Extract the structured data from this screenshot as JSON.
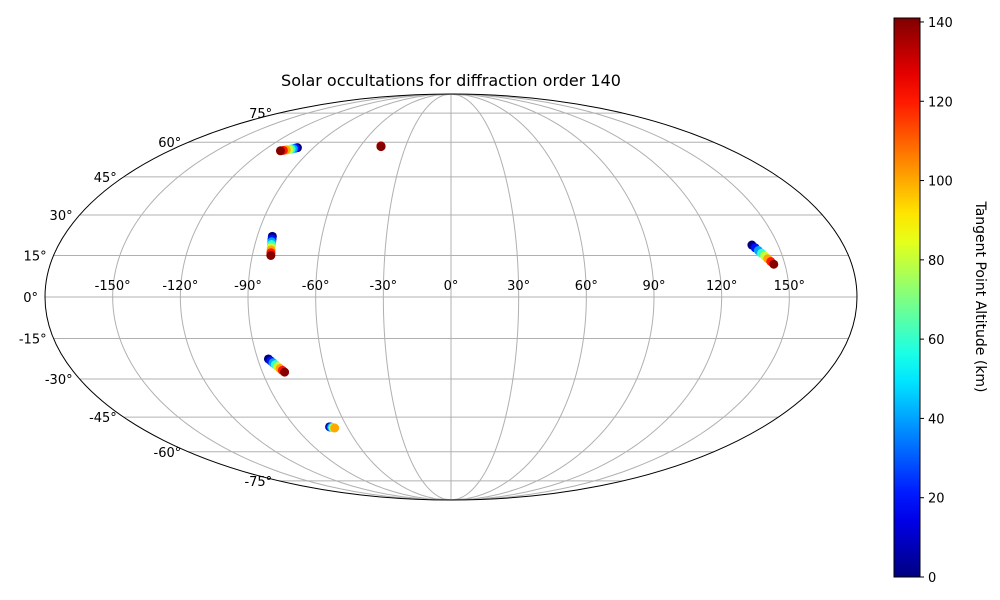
{
  "chart_data": {
    "type": "scatter",
    "projection": "mollweide",
    "title": "Solar occultations for diffraction order 140",
    "xlabel": "",
    "ylabel": "",
    "grid": true,
    "lon_ticks": [
      -150,
      -120,
      -90,
      -60,
      -30,
      0,
      30,
      60,
      90,
      120,
      150
    ],
    "lon_tick_labels": [
      "-150°",
      "-120°",
      "-90°",
      "-60°",
      "-30°",
      "0°",
      "30°",
      "60°",
      "90°",
      "120°",
      "150°"
    ],
    "lat_ticks": [
      -75,
      -60,
      -45,
      -30,
      -15,
      0,
      15,
      30,
      45,
      60,
      75
    ],
    "lat_tick_labels": [
      "-75°",
      "-60°",
      "-45°",
      "-30°",
      "-15°",
      "0°",
      "15°",
      "30°",
      "45°",
      "60°",
      "75°"
    ],
    "colorbar": {
      "label": "Tangent Point Altitude (km)",
      "colormap": "jet",
      "range": [
        0,
        141
      ],
      "ticks": [
        0,
        20,
        40,
        60,
        80,
        100,
        120,
        140
      ],
      "tick_labels": [
        "0",
        "20",
        "40",
        "60",
        "80",
        "100",
        "120",
        "140"
      ]
    },
    "series": [
      {
        "lon": [
          -100.5,
          -101.5,
          -102.5,
          -103.5,
          -104.5,
          -106.0,
          -107.5,
          -109.0
        ],
        "lat": [
          57.5,
          57.3,
          57.1,
          56.9,
          56.7,
          56.5,
          56.3,
          56.1
        ],
        "altitude": [
          0,
          20,
          40,
          60,
          80,
          100,
          120,
          140
        ]
      },
      {
        "lon": [
          -46.5,
          -46.4,
          -46.3,
          -46.2
        ],
        "lat": [
          58.3,
          58.2,
          58.1,
          58.0
        ],
        "altitude": [
          125,
          130,
          135,
          140
        ]
      },
      {
        "lon": [
          -83.0,
          -82.8,
          -82.6,
          -82.4,
          -82.2,
          -82.0,
          -81.8,
          -81.6
        ],
        "lat": [
          22.0,
          21.0,
          20.0,
          19.0,
          18.0,
          17.0,
          16.0,
          15.0
        ],
        "altitude": [
          0,
          20,
          40,
          60,
          80,
          100,
          120,
          140
        ]
      },
      {
        "lon": [
          138.0,
          139.0,
          140.0,
          141.0,
          142.0,
          143.0,
          144.0,
          145.0
        ],
        "lat": [
          18.8,
          17.8,
          16.8,
          15.8,
          14.8,
          13.8,
          12.8,
          11.8
        ],
        "altitude": [
          0,
          20,
          40,
          60,
          80,
          100,
          120,
          140
        ]
      },
      {
        "lon": [
          -85.0,
          -84.2,
          -83.4,
          -82.6,
          -81.8,
          -81.0,
          -80.2,
          -79.4
        ],
        "lat": [
          -22.5,
          -23.2,
          -23.9,
          -24.6,
          -25.3,
          -26.0,
          -26.7,
          -27.4
        ],
        "altitude": [
          0,
          20,
          40,
          60,
          80,
          100,
          120,
          140
        ]
      },
      {
        "lon": [
          -70.0,
          -69.5,
          -69.0,
          -68.5,
          -68.0,
          -67.5
        ],
        "lat": [
          -49.0,
          -49.1,
          -49.2,
          -49.3,
          -49.4,
          -49.5
        ],
        "altitude": [
          0,
          20,
          40,
          60,
          80,
          100
        ]
      }
    ]
  }
}
